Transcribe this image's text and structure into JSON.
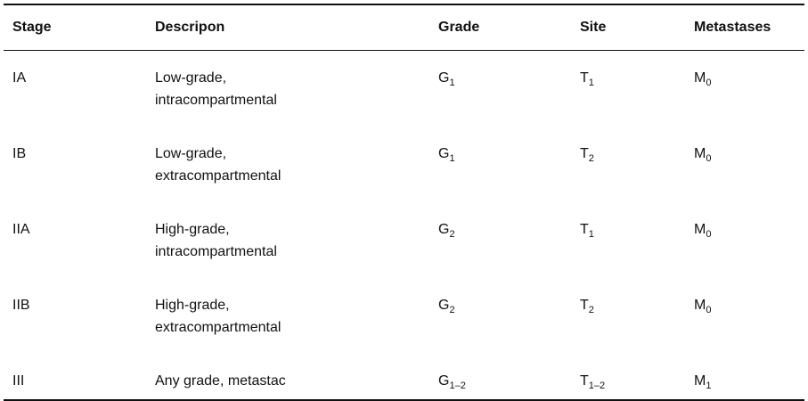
{
  "table": {
    "header": [
      "Stage",
      "Descripon",
      "Grade",
      "Site",
      "Metastases"
    ],
    "rows": [
      {
        "stage": "IA",
        "description": [
          "Low-grade,",
          "intracompartmental"
        ],
        "grade": {
          "base": "G",
          "sub": "1"
        },
        "site": {
          "base": "T",
          "sub": "1"
        },
        "metastases": {
          "base": "M",
          "sub": "0"
        }
      },
      {
        "stage": "IB",
        "description": [
          "Low-grade,",
          "extracompartmental"
        ],
        "grade": {
          "base": "G",
          "sub": "1"
        },
        "site": {
          "base": "T",
          "sub": "2"
        },
        "metastases": {
          "base": "M",
          "sub": "0"
        }
      },
      {
        "stage": "IIA",
        "description": [
          "High-grade,",
          "intracompartmental"
        ],
        "grade": {
          "base": "G",
          "sub": "2"
        },
        "site": {
          "base": "T",
          "sub": "1"
        },
        "metastases": {
          "base": "M",
          "sub": "0"
        }
      },
      {
        "stage": "IIB",
        "description": [
          "High-grade,",
          "extracompartmental"
        ],
        "grade": {
          "base": "G",
          "sub": "2"
        },
        "site": {
          "base": "T",
          "sub": "2"
        },
        "metastases": {
          "base": "M",
          "sub": "0"
        }
      },
      {
        "stage": "III",
        "description": [
          "Any grade, metastac"
        ],
        "grade": {
          "base": "G",
          "sub": "1–2"
        },
        "site": {
          "base": "T",
          "sub": "1–2"
        },
        "metastases": {
          "base": "M",
          "sub": "1"
        }
      }
    ]
  }
}
